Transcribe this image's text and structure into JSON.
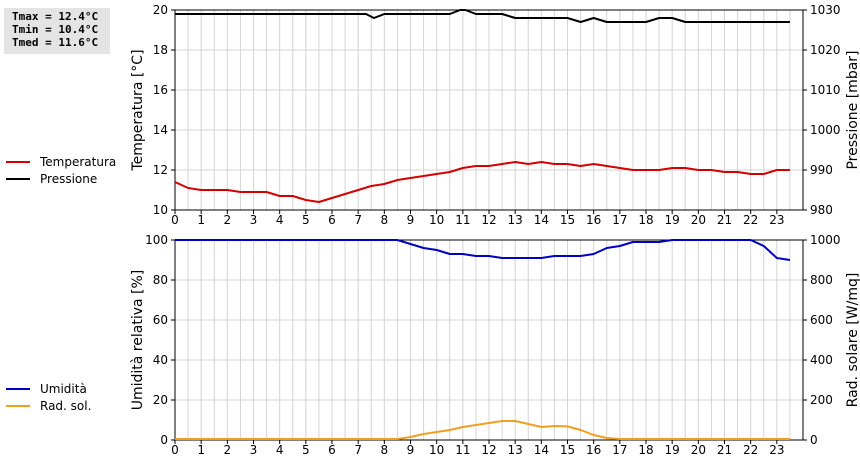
{
  "stats": {
    "tmax": "Tmax = 12.4°C",
    "tmin": "Tmin = 10.4°C",
    "tmed": "Tmed = 11.6°C"
  },
  "legend_top": [
    {
      "label": "Temperatura",
      "color": "#d40000"
    },
    {
      "label": "Pressione",
      "color": "#000000"
    }
  ],
  "legend_bottom": [
    {
      "label": "Umidità",
      "color": "#0000c0"
    },
    {
      "label": "Rad. sol.",
      "color": "#f0a020"
    }
  ],
  "chart_data": [
    {
      "type": "line",
      "x_label": "",
      "x_ticks": [
        "0",
        "1",
        "2",
        "3",
        "4",
        "5",
        "6",
        "7",
        "8",
        "9",
        "10",
        "11",
        "12",
        "13",
        "14",
        "15",
        "16",
        "17",
        "18",
        "19",
        "20",
        "21",
        "22",
        "23"
      ],
      "xlim": [
        0,
        24
      ],
      "ylabel_left": "Temperatura [°C]",
      "ylim_left": [
        10,
        20
      ],
      "yticks_left": [
        10,
        12,
        14,
        16,
        18,
        20
      ],
      "ylabel_right": "Pressione [mbar]",
      "ylim_right": [
        980,
        1030
      ],
      "yticks_right": [
        980,
        990,
        1000,
        1010,
        1020,
        1030
      ],
      "grid": true,
      "series": [
        {
          "name": "Temperatura",
          "axis": "left",
          "color": "#d40000",
          "x": [
            0,
            0.5,
            1,
            1.5,
            2,
            2.5,
            3,
            3.5,
            4,
            4.5,
            5,
            5.5,
            6,
            6.5,
            7,
            7.5,
            8,
            8.5,
            9,
            9.5,
            10,
            10.5,
            11,
            11.5,
            12,
            12.5,
            13,
            13.5,
            14,
            14.5,
            15,
            15.5,
            16,
            16.5,
            17,
            17.5,
            18,
            18.5,
            19,
            19.5,
            20,
            20.5,
            21,
            21.5,
            22,
            22.5,
            23,
            23.5
          ],
          "y": [
            11.4,
            11.1,
            11.0,
            11.0,
            11.0,
            10.9,
            10.9,
            10.9,
            10.7,
            10.7,
            10.5,
            10.4,
            10.6,
            10.8,
            11.0,
            11.2,
            11.3,
            11.5,
            11.6,
            11.7,
            11.8,
            11.9,
            12.1,
            12.2,
            12.2,
            12.3,
            12.4,
            12.3,
            12.4,
            12.3,
            12.3,
            12.2,
            12.3,
            12.2,
            12.1,
            12.0,
            12.0,
            12.0,
            12.1,
            12.1,
            12.0,
            12.0,
            11.9,
            11.9,
            11.8,
            11.8,
            12.0,
            12.0
          ]
        },
        {
          "name": "Pressione",
          "axis": "right",
          "color": "#000000",
          "x": [
            0,
            7,
            7.3,
            7.6,
            8,
            8.5,
            10.5,
            10.9,
            11.1,
            11.5,
            12,
            12.5,
            13,
            15,
            15.5,
            16,
            16.5,
            18,
            18.5,
            19,
            19.5,
            21,
            23.5
          ],
          "y": [
            1029,
            1029,
            1029,
            1028,
            1029,
            1029,
            1029,
            1030,
            1030,
            1029,
            1029,
            1029,
            1028,
            1028,
            1027,
            1028,
            1027,
            1027,
            1028,
            1028,
            1027,
            1027,
            1027
          ]
        }
      ]
    },
    {
      "type": "line",
      "x_label": "",
      "x_ticks": [
        "0",
        "1",
        "2",
        "3",
        "4",
        "5",
        "6",
        "7",
        "8",
        "9",
        "10",
        "11",
        "12",
        "13",
        "14",
        "15",
        "16",
        "17",
        "18",
        "19",
        "20",
        "21",
        "22",
        "23"
      ],
      "xlim": [
        0,
        24
      ],
      "ylabel_left": "Umidità relativa [%]",
      "ylim_left": [
        0,
        100
      ],
      "yticks_left": [
        0,
        20,
        40,
        60,
        80,
        100
      ],
      "ylabel_right": "Rad. solare [W/mq]",
      "ylim_right": [
        0,
        1000
      ],
      "yticks_right": [
        0,
        200,
        400,
        600,
        800,
        1000
      ],
      "grid": true,
      "series": [
        {
          "name": "Umidità",
          "axis": "left",
          "color": "#0000c0",
          "x": [
            0,
            8.5,
            9,
            9.5,
            10,
            10.5,
            11,
            11.5,
            12,
            12.5,
            13,
            14,
            14.5,
            15,
            15.5,
            16,
            16.5,
            17,
            17.5,
            18,
            18.5,
            19,
            22,
            22.5,
            23,
            23.5
          ],
          "y": [
            100,
            100,
            98,
            96,
            95,
            93,
            93,
            92,
            92,
            91,
            91,
            91,
            92,
            92,
            92,
            93,
            96,
            97,
            99,
            99,
            99,
            100,
            100,
            97,
            91,
            90
          ]
        },
        {
          "name": "Rad. sol.",
          "axis": "right",
          "color": "#f0a020",
          "x": [
            0,
            8.5,
            9,
            9.5,
            10,
            10.5,
            11,
            11.5,
            12,
            12.5,
            13,
            13.5,
            14,
            14.5,
            15,
            15.5,
            16,
            16.5,
            17,
            23.5
          ],
          "y": [
            5,
            5,
            15,
            30,
            40,
            50,
            65,
            75,
            85,
            95,
            95,
            80,
            65,
            70,
            68,
            50,
            25,
            10,
            5,
            5
          ]
        }
      ]
    }
  ]
}
